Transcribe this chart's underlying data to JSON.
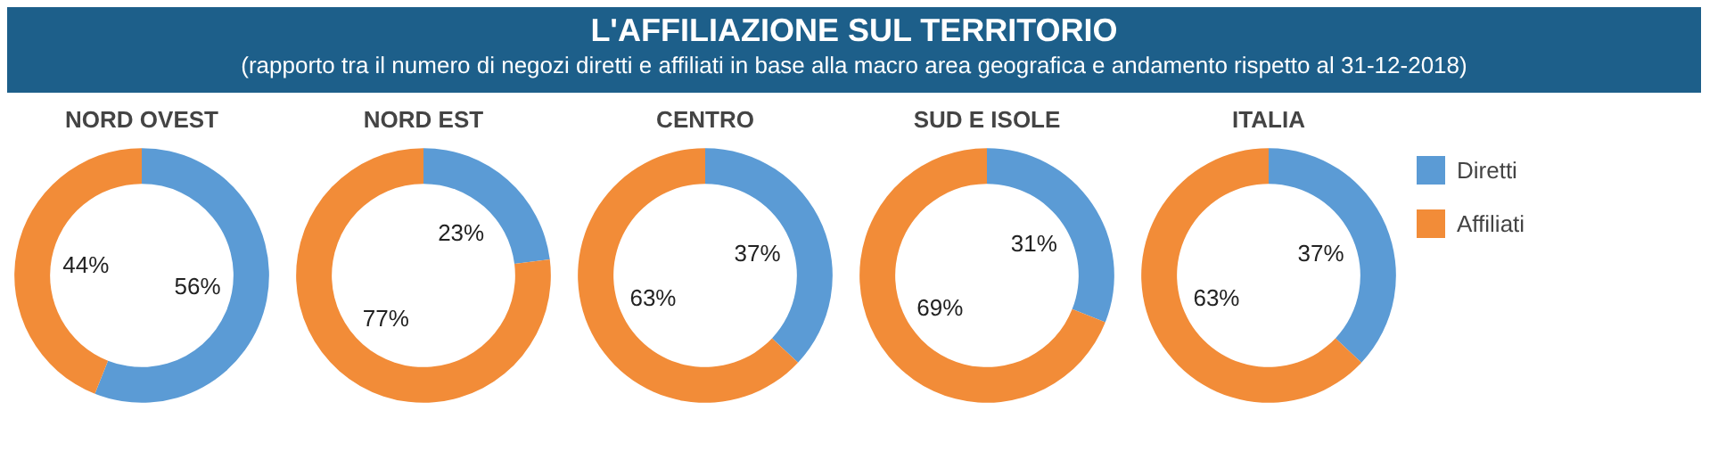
{
  "chart_data": [
    {
      "type": "donut",
      "title": "NORD OVEST",
      "annotations": [
        "L'AFFILIAZIONE SUL TERRITORIO",
        "(rapporto tra il numero di negozi diretti e affiliati in base alla macro area geografica e andamento rispetto al 31-12-2018)"
      ],
      "categories": [
        null,
        null
      ],
      "values": [
        56,
        44
      ],
      "colors": [
        "#5b9bd5",
        "#f28c38"
      ],
      "value_labels": [
        "56%",
        "44%"
      ]
    },
    {
      "type": "donut",
      "title": "NORD EST",
      "categories": [
        null,
        null
      ],
      "values": [
        23,
        77
      ],
      "colors": [
        "#5b9bd5",
        "#f28c38"
      ],
      "value_labels": [
        "23%",
        "77%"
      ]
    },
    {
      "type": "donut",
      "title": "CENTRO",
      "categories": [
        null,
        null
      ],
      "values": [
        37,
        63
      ],
      "colors": [
        "#5b9bd5",
        "#f28c38"
      ],
      "value_labels": [
        "37%",
        "63%"
      ]
    },
    {
      "type": "donut",
      "title": "SUD E ISOLE",
      "categories": [
        null,
        null
      ],
      "values": [
        31,
        69
      ],
      "colors": [
        "#5b9bd5",
        "#f28c38"
      ],
      "value_labels": [
        "31%",
        "69%"
      ]
    },
    {
      "type": "donut",
      "title": "ITALIA",
      "categories": [
        "Diretti",
        "Affiliati"
      ],
      "values": [
        37,
        63
      ],
      "colors": [
        "#5b9bd5",
        "#f28c38"
      ],
      "value_labels": [
        "37%",
        "63%"
      ],
      "legend": "right"
    }
  ]
}
